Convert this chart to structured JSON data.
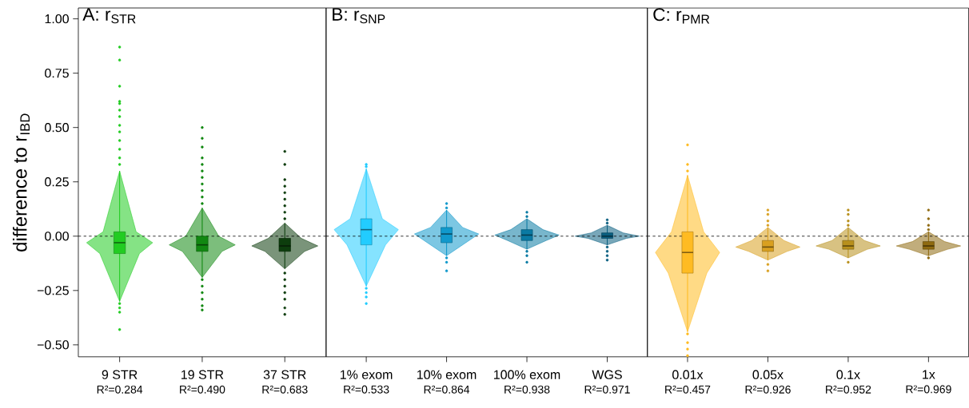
{
  "chart_data": [
    {
      "type": "box",
      "title": "A: r$_{STR}$",
      "ylabel": "difference to r$_{IBD}$",
      "categories": [
        "9 STR",
        "19 STR",
        "37 STR"
      ],
      "colors": [
        "#22cc22",
        "#118811",
        "#0d3d0d"
      ],
      "boxes": [
        {
          "low": -0.3,
          "q1": -0.08,
          "median": -0.03,
          "q3": 0.02,
          "high": 0.3,
          "outliers": [
            0.33,
            0.36,
            0.4,
            0.44,
            0.48,
            0.51,
            0.55,
            0.58,
            0.61,
            0.62,
            0.69,
            0.81,
            0.87,
            -0.31,
            -0.33,
            -0.35,
            -0.43
          ]
        },
        {
          "low": -0.19,
          "q1": -0.07,
          "median": -0.04,
          "q3": 0.0,
          "high": 0.13,
          "outliers": [
            0.15,
            0.18,
            0.21,
            0.24,
            0.27,
            0.3,
            0.33,
            0.36,
            0.41,
            0.45,
            0.5,
            -0.2,
            -0.23,
            -0.26,
            -0.29,
            -0.32,
            -0.34
          ]
        },
        {
          "low": -0.15,
          "q1": -0.07,
          "median": -0.045,
          "q3": -0.01,
          "high": 0.06,
          "outliers": [
            0.08,
            0.11,
            0.14,
            0.17,
            0.2,
            0.23,
            0.26,
            0.33,
            0.39,
            -0.17,
            -0.2,
            -0.23,
            -0.26,
            -0.29,
            -0.33,
            -0.36
          ]
        }
      ],
      "ylim": [
        -0.555,
        1.05
      ],
      "yticks": [
        {
          "value": -0.5,
          "label": "−0.50"
        },
        {
          "value": -0.25,
          "label": "−0.25"
        },
        {
          "value": 0,
          "label": "0.00"
        },
        {
          "value": 0.25,
          "label": "0.25"
        },
        {
          "value": 0.5,
          "label": "0.50"
        },
        {
          "value": 0.75,
          "label": "0.75"
        },
        {
          "value": 1,
          "label": "1.00"
        }
      ],
      "ref_lines": [
        {
          "axis": "y",
          "value": 0,
          "line_style": "dotted"
        }
      ],
      "annotations": [
        "R²=0.284",
        "R²=0.490",
        "R²=0.683"
      ]
    },
    {
      "type": "box",
      "title": "B: r$_{SNP}$",
      "categories": [
        "1% exom",
        "10% exom",
        "100% exom",
        "WGS"
      ],
      "colors": [
        "#22ccff",
        "#1199cc",
        "#0a7aa3",
        "#0a5f80"
      ],
      "boxes": [
        {
          "low": -0.23,
          "q1": -0.04,
          "median": 0.03,
          "q3": 0.08,
          "high": 0.31,
          "outliers": [
            0.32,
            0.33,
            -0.24,
            -0.26,
            -0.28,
            -0.31
          ]
        },
        {
          "low": -0.09,
          "q1": -0.03,
          "median": 0.01,
          "q3": 0.04,
          "high": 0.12,
          "outliers": [
            0.13,
            0.15,
            -0.1,
            -0.12,
            -0.16
          ]
        },
        {
          "low": -0.06,
          "q1": -0.02,
          "median": 0.005,
          "q3": 0.03,
          "high": 0.08,
          "outliers": [
            0.09,
            0.11,
            -0.07,
            -0.09,
            -0.12
          ]
        },
        {
          "low": -0.04,
          "q1": -0.01,
          "median": 0.0,
          "q3": 0.015,
          "high": 0.05,
          "outliers": [
            0.06,
            0.075,
            -0.05,
            -0.07,
            -0.09,
            -0.11
          ]
        }
      ],
      "ylim": [
        -0.555,
        1.05
      ],
      "tick_labels": "x",
      "ref_lines": [
        {
          "axis": "y",
          "value": 0,
          "line_style": "dotted"
        }
      ],
      "annotations": [
        "R²=0.533",
        "R²=0.864",
        "R²=0.938",
        "R²=0.971"
      ]
    },
    {
      "type": "box",
      "title": "C: r$_{PMR}$",
      "categories": [
        "0.01x",
        "0.05x",
        "0.1x",
        "1x"
      ],
      "colors": [
        "#ffbb22",
        "#d9a020",
        "#b8901c",
        "#8f6a10"
      ],
      "boxes": [
        {
          "low": -0.44,
          "q1": -0.17,
          "median": -0.075,
          "q3": 0.02,
          "high": 0.28,
          "outliers": [
            0.3,
            0.33,
            0.42,
            -0.45,
            -0.49,
            -0.52,
            -0.55
          ]
        },
        {
          "low": -0.11,
          "q1": -0.07,
          "median": -0.05,
          "q3": -0.02,
          "high": 0.04,
          "outliers": [
            0.05,
            0.07,
            0.1,
            0.12,
            -0.13,
            -0.16
          ]
        },
        {
          "low": -0.1,
          "q1": -0.06,
          "median": -0.045,
          "q3": -0.02,
          "high": 0.04,
          "outliers": [
            0.05,
            0.07,
            0.1,
            0.12,
            -0.12
          ]
        },
        {
          "low": -0.09,
          "q1": -0.06,
          "median": -0.045,
          "q3": -0.025,
          "high": 0.02,
          "outliers": [
            0.03,
            0.05,
            0.08,
            0.12,
            -0.1
          ]
        }
      ],
      "ylim": [
        -0.555,
        1.05
      ],
      "tick_labels": "x",
      "ref_lines": [
        {
          "axis": "y",
          "value": 0,
          "line_style": "dotted"
        }
      ],
      "annotations": [
        "R²=0.457",
        "R²=0.926",
        "R²=0.952",
        "R²=0.969"
      ]
    }
  ]
}
